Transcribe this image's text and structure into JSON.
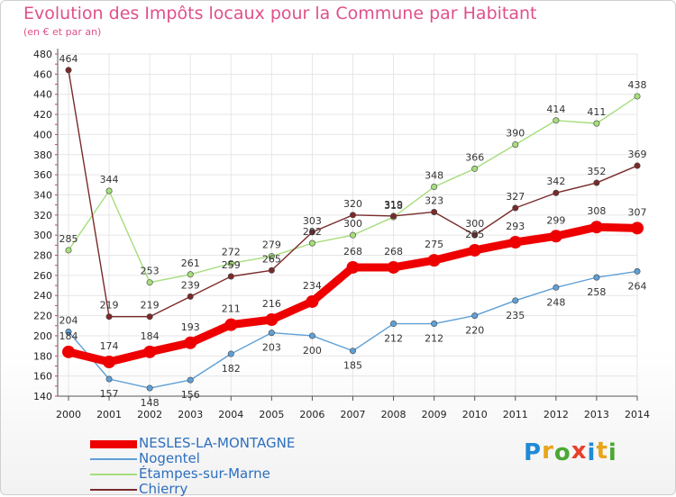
{
  "header": {
    "title": "Evolution des Impôts locaux pour la Commune par Habitant",
    "subtitle": "(en € et par an)"
  },
  "logo": {
    "letters": [
      "P",
      "r",
      "o",
      "x",
      "i",
      "t",
      "i"
    ],
    "colors": [
      "#1f8ad6",
      "#e8a41a",
      "#4aa832",
      "#e8402a",
      "#1f8ad6",
      "#e8a41a",
      "#4aa832"
    ]
  },
  "chart_data": {
    "type": "line",
    "title": "Evolution des Impôts locaux pour la Commune par Habitant",
    "subtitle": "(en € et par an)",
    "x": [
      "2000",
      "2001",
      "2002",
      "2003",
      "2004",
      "2005",
      "2006",
      "2007",
      "2008",
      "2009",
      "2010",
      "2011",
      "2012",
      "2013",
      "2014"
    ],
    "ylim": [
      140,
      480
    ],
    "yticks": [
      140,
      160,
      180,
      200,
      220,
      240,
      260,
      280,
      300,
      320,
      340,
      360,
      380,
      400,
      420,
      440,
      460,
      480
    ],
    "grid": true,
    "legend_position": "bottom-left",
    "series": [
      {
        "name": "NESLES-LA-MONTAGNE",
        "color": "#ee0000",
        "width": 9,
        "values": [
          184,
          174,
          184,
          193,
          211,
          216,
          234,
          268,
          268,
          275,
          285,
          293,
          299,
          308,
          307
        ]
      },
      {
        "name": "Nogentel",
        "color": "#5fa0d6",
        "width": 1.4,
        "values": [
          204,
          157,
          148,
          156,
          182,
          203,
          200,
          185,
          212,
          212,
          220,
          235,
          248,
          258,
          264
        ]
      },
      {
        "name": "Étampes-sur-Marne",
        "color": "#a6dd7c",
        "width": 1.4,
        "values": [
          285,
          344,
          253,
          261,
          272,
          279,
          292,
          300,
          318,
          348,
          366,
          390,
          414,
          411,
          438
        ]
      },
      {
        "name": "Chierry",
        "color": "#7a2a2a",
        "width": 1.4,
        "values": [
          464,
          219,
          219,
          239,
          259,
          265,
          303,
          320,
          319,
          323,
          300,
          327,
          342,
          352,
          369
        ]
      }
    ]
  }
}
